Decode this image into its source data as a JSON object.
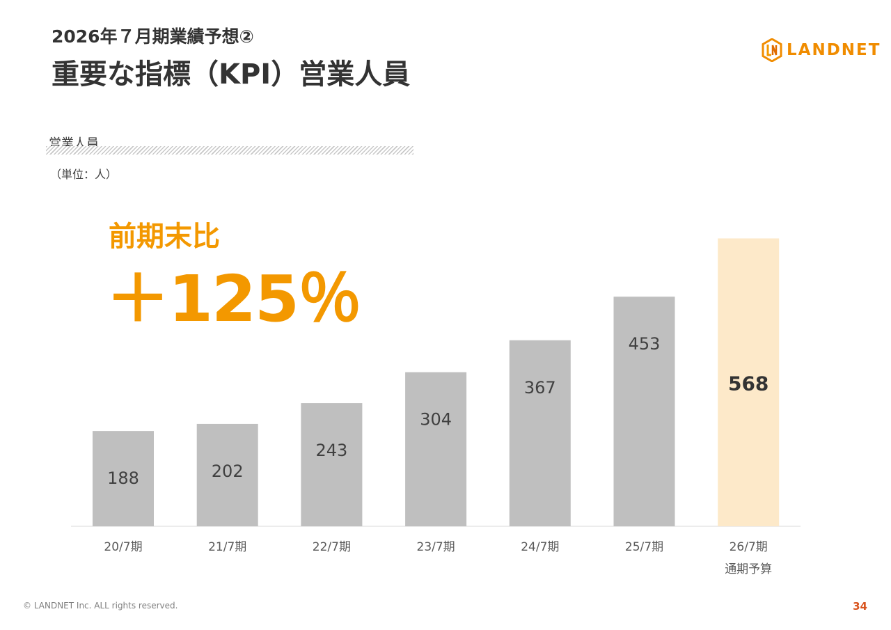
{
  "header": {
    "subtitle": "2026年７月期業績予想②",
    "title": "重要な指標（KPI）営業人員"
  },
  "logo": {
    "text": "LANDNET",
    "color": "#f08c00"
  },
  "section": {
    "label": "営業人員",
    "unit": "（単位：人）"
  },
  "highlight": {
    "label": "前期末比",
    "value": "＋125％",
    "color": "#f39800"
  },
  "chart_data": {
    "type": "bar",
    "categories": [
      "20/7期",
      "21/7期",
      "22/7期",
      "23/7期",
      "24/7期",
      "25/7期",
      "26/7期"
    ],
    "category_sublabels": [
      "",
      "",
      "",
      "",
      "",
      "",
      "通期予算"
    ],
    "values": [
      188,
      202,
      243,
      304,
      367,
      453,
      568
    ],
    "bar_color": "#bfbfbf",
    "highlight_bar_color": "#fde9c9",
    "highlight_index": 6,
    "ylim": [
      0,
      570
    ],
    "grid": false
  },
  "footer": {
    "copyright": "© LANDNET Inc. ALL rights reserved.",
    "page": "34"
  }
}
